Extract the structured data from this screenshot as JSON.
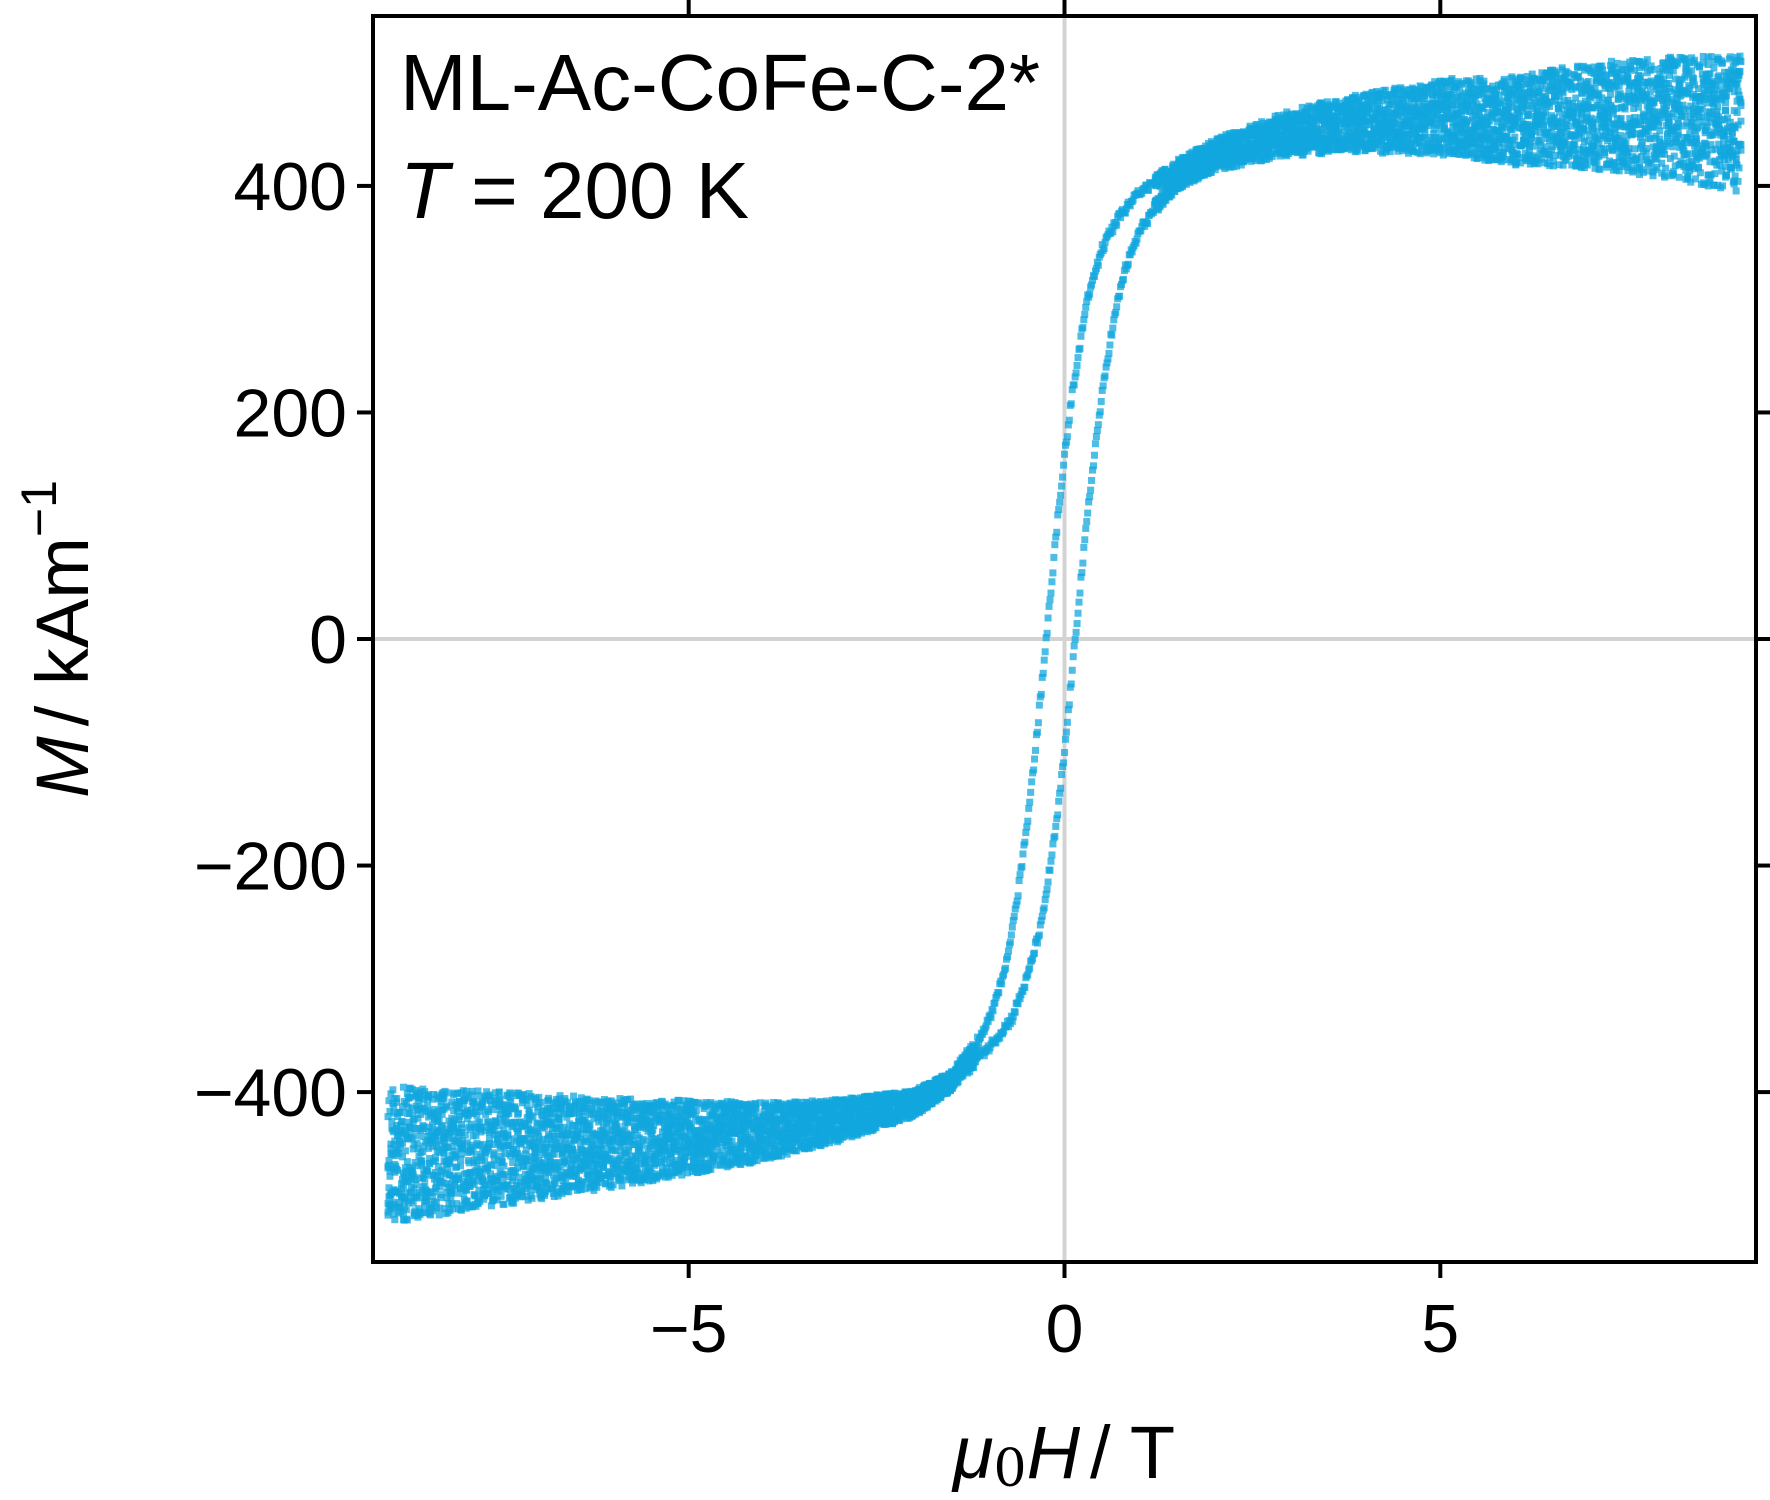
{
  "chart_data": {
    "type": "scatter",
    "title": "",
    "annotation": {
      "sample": "ML-Ac-CoFe-C-2*",
      "temperature_symbol": "T",
      "temperature_rest": " = 200 K"
    },
    "xlabel": {
      "symbol": "μ",
      "subscript": "0",
      "var": "H",
      "unit": "/ T"
    },
    "ylabel": {
      "var": "M",
      "unit": "/ kAm",
      "exponent": "−1"
    },
    "xlim": [
      -9.2,
      9.2
    ],
    "ylim": [
      -550,
      550
    ],
    "xticks": [
      {
        "value": -5,
        "label": "−5"
      },
      {
        "value": 0,
        "label": "0"
      },
      {
        "value": 5,
        "label": "5"
      }
    ],
    "yticks": [
      {
        "value": -400,
        "label": "−400"
      },
      {
        "value": -200,
        "label": "−200"
      },
      {
        "value": 0,
        "label": "0"
      },
      {
        "value": 200,
        "label": "200"
      },
      {
        "value": 400,
        "label": "400"
      }
    ],
    "zero_lines": true,
    "grid": false,
    "legend": "none",
    "marker_color": "#12a7dd",
    "zero_line_color": "#d3d3d3",
    "series": [
      {
        "branch": "descending",
        "x": [
          9.0,
          8.0,
          7.0,
          6.0,
          5.0,
          4.0,
          3.0,
          2.0,
          1.5,
          1.0,
          0.7,
          0.5,
          0.3,
          0.1,
          0.0,
          -0.1,
          -0.2,
          -0.3,
          -0.4,
          -0.5,
          -0.6,
          -0.7,
          -0.8,
          -1.0,
          -1.2,
          -1.5,
          -2.0,
          -3.0,
          -4.0,
          -5.0,
          -6.0,
          -7.0,
          -8.0,
          -9.0
        ],
        "y": [
          455,
          460,
          462,
          458,
          462,
          458,
          448,
          430,
          415,
          395,
          370,
          345,
          300,
          215,
          160,
          100,
          30,
          -40,
          -105,
          -165,
          -215,
          -260,
          -295,
          -335,
          -360,
          -390,
          -410,
          -425,
          -435,
          -440,
          -445,
          -448,
          -452,
          -455
        ]
      },
      {
        "branch": "ascending",
        "x": [
          -9.0,
          -8.0,
          -7.0,
          -6.0,
          -5.0,
          -4.0,
          -3.0,
          -2.0,
          -1.5,
          -1.0,
          -0.7,
          -0.5,
          -0.3,
          -0.1,
          0.0,
          0.1,
          0.2,
          0.3,
          0.4,
          0.5,
          0.6,
          0.7,
          0.8,
          1.0,
          1.2,
          1.5,
          2.0,
          3.0,
          4.0,
          5.0,
          6.0,
          7.0,
          8.0,
          9.0
        ],
        "y": [
          -455,
          -452,
          -448,
          -445,
          -440,
          -435,
          -425,
          -410,
          -390,
          -360,
          -335,
          -300,
          -250,
          -160,
          -100,
          -30,
          40,
          105,
          165,
          215,
          260,
          295,
          325,
          360,
          380,
          405,
          425,
          445,
          455,
          460,
          458,
          462,
          460,
          455
        ]
      }
    ]
  }
}
